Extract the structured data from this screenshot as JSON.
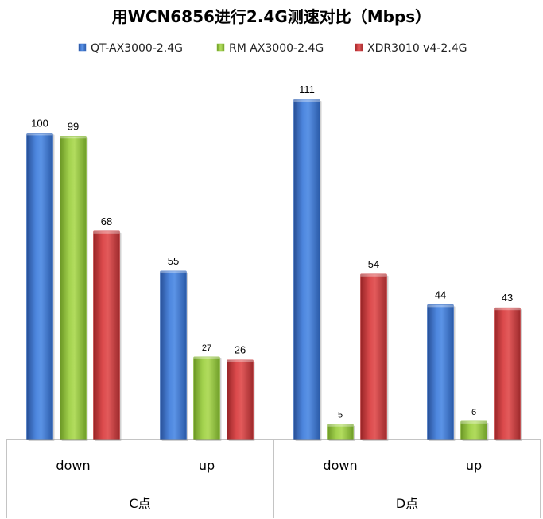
{
  "chart_data": {
    "type": "bar",
    "title": "用WCN6856进行2.4G测速对比（Mbps）",
    "xlabel": "",
    "ylabel": "",
    "ylim": [
      0,
      115
    ],
    "grid": false,
    "legend_position": "top",
    "groups": [
      {
        "label": "C点",
        "categories": [
          "down",
          "up"
        ]
      },
      {
        "label": "D点",
        "categories": [
          "down",
          "up"
        ]
      }
    ],
    "categories": [
      "down",
      "up",
      "down",
      "up"
    ],
    "series": [
      {
        "name": "QT-AX3000-2.4G",
        "color": "#3a6fc4",
        "values": [
          100,
          55,
          111,
          44
        ],
        "labels": [
          "100",
          "55",
          "111",
          "44"
        ]
      },
      {
        "name": "RM AX3000-2.4G",
        "color": "#8cbf3a",
        "values": [
          99,
          27,
          5,
          6
        ],
        "labels": [
          "99",
          "27",
          "5",
          "6"
        ]
      },
      {
        "name": "XDR3010 v4-2.4G",
        "color": "#c9373a",
        "values": [
          68,
          26,
          54,
          43
        ],
        "labels": [
          "68",
          "26",
          "54",
          "43"
        ]
      }
    ]
  }
}
